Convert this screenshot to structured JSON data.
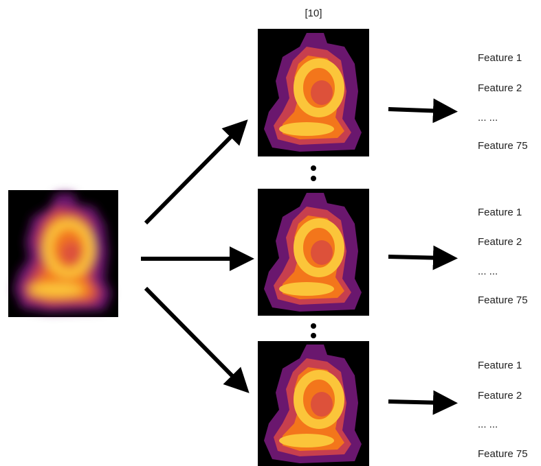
{
  "annotation": "[10]",
  "feature_lists": [
    {
      "items": [
        "Feature 1",
        "Feature 2",
        "... ...",
        "Feature 75"
      ]
    },
    {
      "items": [
        "Feature 1",
        "Feature 2",
        "... ...",
        "Feature 75"
      ]
    },
    {
      "items": [
        "Feature 1",
        "Feature 2",
        "... ...",
        "Feature 75"
      ]
    }
  ]
}
